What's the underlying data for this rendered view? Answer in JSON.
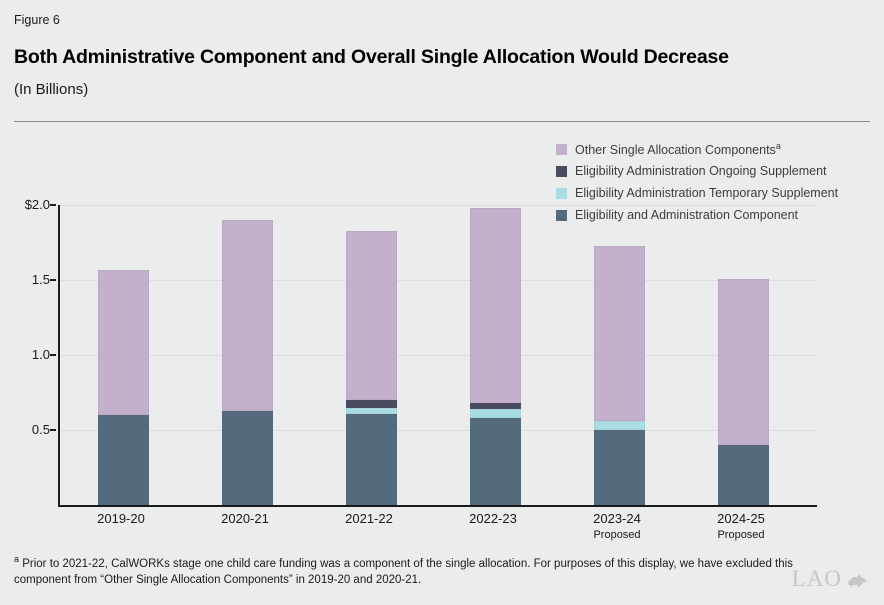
{
  "header": {
    "figure_label": "Figure 6"
  },
  "chart_data": {
    "type": "bar",
    "stacked": true,
    "title": "Both Administrative Component and Overall Single Allocation Would Decrease",
    "subtitle": "(In Billions)",
    "xlabel": "",
    "ylabel": "",
    "ylim": [
      0,
      2.0
    ],
    "grid": true,
    "legend_position": "top-right",
    "categories": [
      "2019-20",
      "2020-21",
      "2021-22",
      "2022-23",
      "2023-24",
      "2024-25"
    ],
    "category_sublabels": [
      "",
      "",
      "",
      "",
      "Proposed",
      "Proposed"
    ],
    "series": [
      {
        "name": "Eligibility and Administration Component",
        "color": "#536b7c",
        "values": [
          0.6,
          0.63,
          0.61,
          0.58,
          0.5,
          0.4
        ]
      },
      {
        "name": "Eligibility Administration Temporary Supplement",
        "color": "#a9dde2",
        "values": [
          0,
          0,
          0.04,
          0.06,
          0.06,
          0
        ]
      },
      {
        "name": "Eligibility Administration Ongoing Supplement",
        "color": "#4b4b5f",
        "values": [
          0,
          0,
          0.05,
          0.04,
          0,
          0
        ]
      },
      {
        "name": "Other Single Allocation Components",
        "color": "#c3b0ca",
        "superscript": "a",
        "values": [
          0.97,
          1.27,
          1.13,
          1.3,
          1.17,
          1.11
        ]
      }
    ],
    "legend_order": [
      3,
      2,
      1,
      0
    ],
    "y_axis": {
      "tick_labels": [
        "$2.0",
        "1.5",
        "1.0",
        "0.5"
      ],
      "tick_values": [
        2.0,
        1.5,
        1.0,
        0.5
      ]
    }
  },
  "footnote": {
    "marker": "a",
    "text": "Prior to 2021-22, CalWORKs stage one child care funding was a component of the single allocation. For purposes of this display, we have excluded this component from “Other Single Allocation Components” in 2019-20 and 2020-21."
  },
  "logo": {
    "text": "LAO",
    "icon": "bear-icon"
  }
}
